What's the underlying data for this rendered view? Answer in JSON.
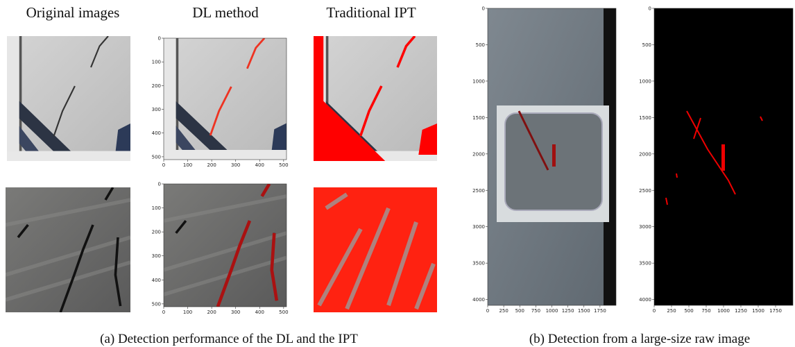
{
  "panel_a": {
    "column_headers": [
      "Original images",
      "DL method",
      "Traditional IPT"
    ],
    "dl_axes": {
      "xlim": [
        0,
        512
      ],
      "ylim": [
        0,
        512
      ],
      "xticks": [
        0,
        100,
        200,
        300,
        400,
        500
      ],
      "yticks": [
        0,
        100,
        200,
        300,
        400,
        500
      ]
    },
    "caption": "(a) Detection performance of the DL and the IPT"
  },
  "panel_b": {
    "axes": {
      "xlim": [
        0,
        2000
      ],
      "ylim": [
        0,
        4080
      ],
      "xticks": [
        0,
        250,
        500,
        750,
        1000,
        1250,
        1500,
        1750
      ],
      "yticks": [
        0,
        500,
        1000,
        1500,
        2000,
        2500,
        3000,
        3500,
        4000
      ]
    },
    "caption": "(b) Detection from a large-size raw image"
  }
}
